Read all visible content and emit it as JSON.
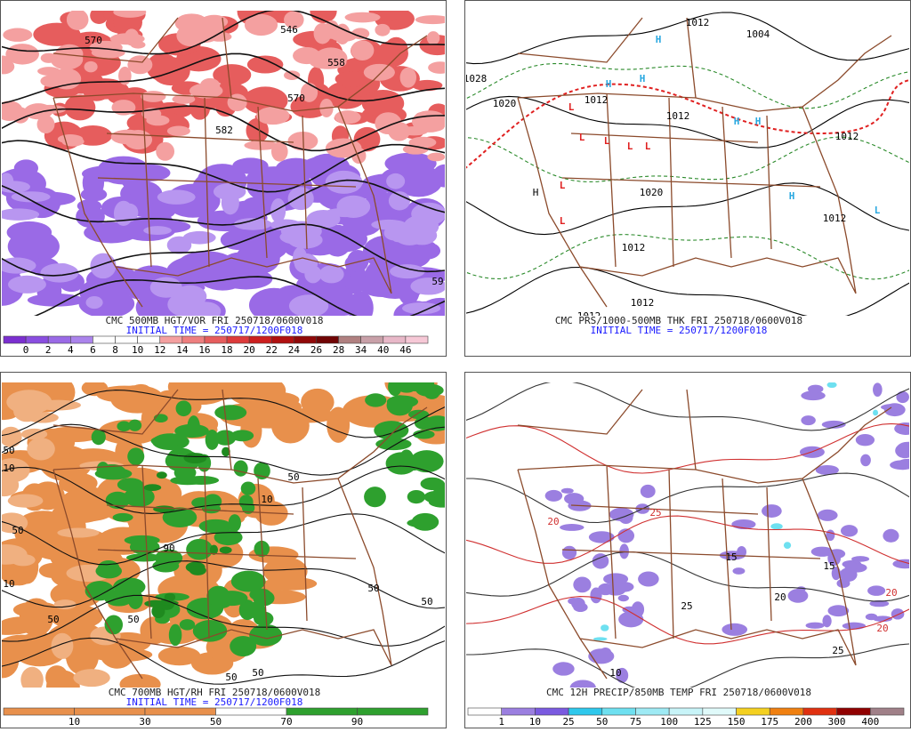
{
  "panels": [
    {
      "caption": "CMC 500MB HGT/VOR FRI 250718/0600V018",
      "initial_time": "INITIAL TIME = 250717/1200F018",
      "map_labels": [
        "570",
        "546",
        "558",
        "570",
        "582",
        "59"
      ],
      "colorbar": {
        "colors": [
          "#7b2fd0",
          "#8a4ee0",
          "#9a6ae6",
          "#ab84ec",
          "#ffffff",
          "#ffffff",
          "#ffffff",
          "#f4a0a0",
          "#ee7f7f",
          "#e65d5d",
          "#dd3b3b",
          "#cc1f1f",
          "#b01010",
          "#900808",
          "#700404",
          "#b08080",
          "#c8a0a8",
          "#e8b8c8",
          "#f6c8d6"
        ],
        "labels": [
          "0",
          "2",
          "4",
          "6",
          "8",
          "10",
          "12",
          "14",
          "16",
          "18",
          "20",
          "22",
          "24",
          "26",
          "28",
          "34",
          "40",
          "46"
        ]
      }
    },
    {
      "caption": "CMC PRS/1000-500MB THK FRI 250718/0600V018",
      "initial_time": "INITIAL TIME = 250717/1200F018",
      "map_labels": [
        "1012",
        "1004",
        "1028",
        "1020",
        "1012",
        "1012",
        "1020",
        "1012",
        "1012",
        "1012",
        "1012",
        "1012",
        "H",
        "H",
        "H",
        "H",
        "H",
        "H",
        "H",
        "L",
        "L",
        "L",
        "L",
        "L",
        "L",
        "L",
        "L"
      ]
    },
    {
      "caption": "CMC 700MB HGT/RH FRI 250718/0600V018",
      "initial_time": "INITIAL TIME = 250717/1200F018",
      "map_labels": [
        "50",
        "10",
        "50",
        "10",
        "50",
        "50",
        "50",
        "90",
        "50",
        "50",
        "50",
        "50",
        "10"
      ],
      "colorbar": {
        "colors": [
          "#e8904c",
          "#e8904c",
          "#e8904c",
          "#ffffff",
          "#2ea02e",
          "#2ea02e"
        ],
        "labels": [
          "10",
          "30",
          "50",
          "70",
          "90"
        ]
      }
    },
    {
      "caption": "CMC 12H PRECIP/850MB TEMP FRI 250718/0600V018",
      "map_labels": [
        "20",
        "25",
        "20",
        "15",
        "25",
        "20",
        "10",
        "25",
        "15",
        "20"
      ],
      "colorbar": {
        "colors": [
          "#ffffff",
          "#9b7fe0",
          "#7a5ae0",
          "#2ec8ec",
          "#6ee0f0",
          "#9eeaf4",
          "#c8f4f8",
          "#e0fafa",
          "#f4d020",
          "#f08010",
          "#e03010",
          "#900000",
          "#a08088"
        ],
        "labels": [
          "1",
          "10",
          "25",
          "50",
          "75",
          "100",
          "125",
          "150",
          "175",
          "200",
          "300",
          "400"
        ]
      }
    }
  ]
}
